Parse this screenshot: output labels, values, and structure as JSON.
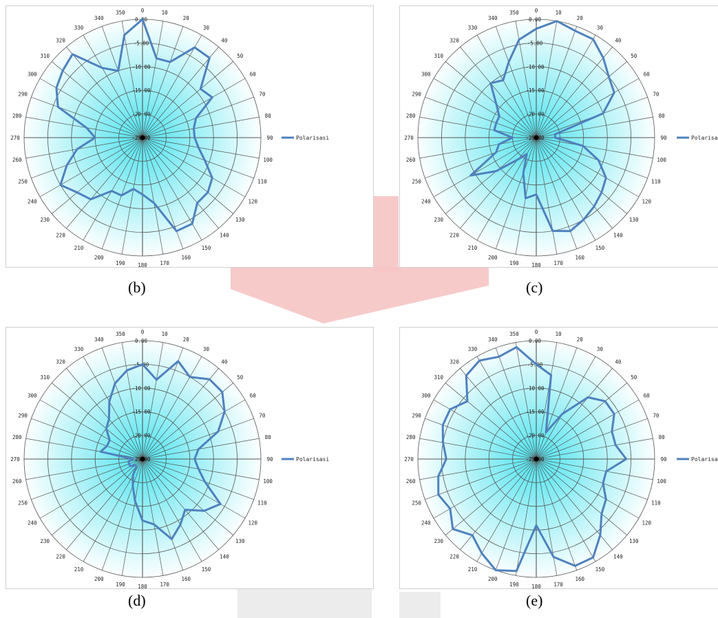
{
  "colors": {
    "series": "#4f81bd",
    "grid": "#555555",
    "glow": "#4ee3ee",
    "watermark_red": "#f6c4c4",
    "watermark_grey": "#ececec",
    "border": "#cfcfcf"
  },
  "chart_data": [
    {
      "id": "b",
      "caption": "(b)",
      "type": "radar",
      "legend": "Polarisasi",
      "legend_position": "right",
      "angles": [
        0,
        10,
        20,
        30,
        40,
        50,
        60,
        70,
        80,
        90,
        100,
        110,
        120,
        130,
        140,
        150,
        160,
        170,
        180,
        190,
        200,
        210,
        220,
        230,
        240,
        250,
        260,
        270,
        280,
        290,
        300,
        310,
        320,
        330,
        340,
        350
      ],
      "radial_ticks": [
        "0.00",
        "-5.00",
        "-10.00",
        "-15.00",
        "-20.00",
        "-25.00"
      ],
      "rlim": [
        -25,
        0
      ],
      "grid": true,
      "values": [
        0,
        -8,
        -8,
        -3,
        -3,
        -9,
        -8,
        -13,
        -14,
        -14,
        -13,
        -11,
        -8,
        -7,
        -7,
        -4,
        -4,
        -11,
        -13,
        -14,
        -12,
        -12,
        -8,
        -7,
        -5,
        -8,
        -11,
        -15,
        -13,
        -6,
        -4,
        -3,
        -2,
        -8,
        -10,
        -3
      ]
    },
    {
      "id": "c",
      "caption": "(c)",
      "type": "radar",
      "legend": "Polarisasi",
      "legend_position": "right",
      "angles": [
        0,
        10,
        20,
        30,
        40,
        50,
        60,
        70,
        80,
        90,
        100,
        110,
        120,
        130,
        140,
        150,
        160,
        170,
        180,
        190,
        200,
        210,
        220,
        230,
        240,
        250,
        260,
        270,
        280,
        290,
        300,
        310,
        320,
        330,
        340,
        350
      ],
      "radial_ticks": [
        "0.00",
        "-5.00",
        "-10.00",
        "-15.00",
        "-20.00",
        "-25.00"
      ],
      "rlim": [
        -25,
        0
      ],
      "grid": true,
      "values": [
        -2,
        0,
        -1,
        -1,
        -3,
        -5,
        -6,
        -10,
        -21,
        -21,
        -15,
        -11,
        -8,
        -7,
        -6,
        -5,
        -4,
        -5,
        -13,
        -12,
        -17,
        -21,
        -19,
        -14,
        -9,
        -16,
        -17,
        -20,
        -16,
        -16,
        -16,
        -14,
        -10,
        -11,
        -8,
        -4
      ]
    },
    {
      "id": "d",
      "caption": "(d)",
      "type": "radar",
      "legend": "Polarisasi",
      "legend_position": "right",
      "angles": [
        0,
        10,
        20,
        30,
        40,
        50,
        60,
        70,
        80,
        90,
        100,
        110,
        120,
        130,
        140,
        150,
        160,
        170,
        180,
        190,
        200,
        210,
        220,
        230,
        240,
        250,
        260,
        270,
        280,
        290,
        300,
        310,
        320,
        330,
        340,
        350
      ],
      "radial_ticks": [
        "0.00",
        "-5.00",
        "-10.00",
        "-15.00",
        "-20.00",
        "-25.00"
      ],
      "rlim": [
        -25,
        0
      ],
      "grid": true,
      "values": [
        -5,
        -8,
        -3,
        -5,
        -3,
        -3,
        -5,
        -8,
        -13,
        -14,
        -13,
        -11,
        -6,
        -8,
        -11,
        -9,
        -7,
        -11,
        -12,
        -16,
        -19,
        -21,
        -23,
        -23,
        -22,
        -22,
        -22,
        -23,
        -16,
        -17,
        -17,
        -15,
        -14,
        -11,
        -8,
        -6
      ]
    },
    {
      "id": "e",
      "caption": "(e)",
      "type": "radar",
      "legend": "Polarisasi",
      "legend_position": "right",
      "angles": [
        0,
        10,
        20,
        30,
        40,
        50,
        60,
        70,
        80,
        90,
        100,
        110,
        120,
        130,
        140,
        150,
        160,
        170,
        180,
        190,
        200,
        210,
        220,
        230,
        240,
        250,
        260,
        270,
        280,
        290,
        300,
        310,
        320,
        330,
        340,
        350
      ],
      "radial_ticks": [
        "0.00",
        "-5.00",
        "-10.00",
        "-15.00",
        "-20.00",
        "-25.00"
      ],
      "rlim": [
        -25,
        0
      ],
      "grid": true,
      "values": [
        -5,
        -7,
        -19,
        -14,
        -8,
        -6,
        -6,
        -8,
        -8,
        -6,
        -10,
        -10,
        -8,
        -7,
        -4,
        -1,
        -1,
        -4,
        -11,
        -1,
        0,
        -2,
        -4,
        -2,
        -4,
        -3,
        -4,
        -6,
        -5,
        -4,
        -4,
        -6,
        -2,
        -1,
        -2,
        -1
      ]
    }
  ]
}
